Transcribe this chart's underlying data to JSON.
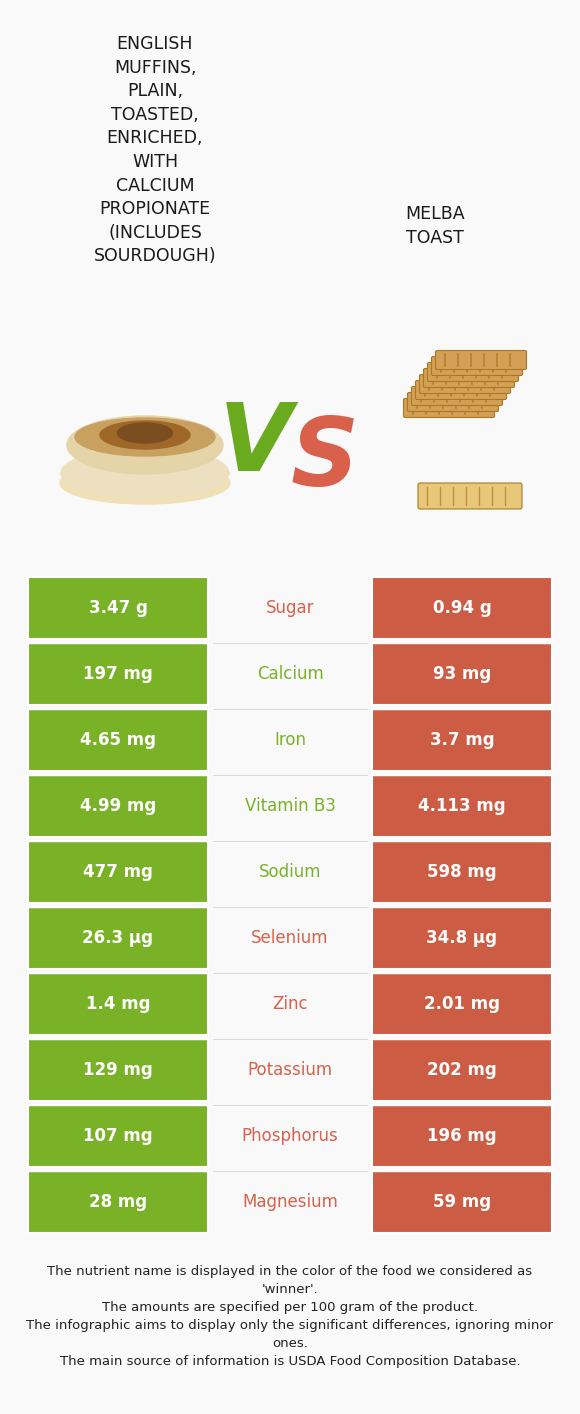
{
  "title_left": "ENGLISH\nMUFFINS,\nPLAIN,\nTOASTED,\nENRICHED,\nWITH\nCALCIUM\nPROPIONATE\n(INCLUDES\nSOURDOUGH)",
  "title_right": "MELBA\nTOAST",
  "vs_color_left": "#6aaa1e",
  "vs_color_right": "#d9614c",
  "left_color": "#7ab227",
  "right_color": "#cd5c45",
  "background_color": "#f9f9f9",
  "rows": [
    {
      "nutrient": "Sugar",
      "left_val": "3.47 g",
      "right_val": "0.94 g",
      "nutrient_color": "#d9614c"
    },
    {
      "nutrient": "Calcium",
      "left_val": "197 mg",
      "right_val": "93 mg",
      "nutrient_color": "#7ab227"
    },
    {
      "nutrient": "Iron",
      "left_val": "4.65 mg",
      "right_val": "3.7 mg",
      "nutrient_color": "#7ab227"
    },
    {
      "nutrient": "Vitamin B3",
      "left_val": "4.99 mg",
      "right_val": "4.113 mg",
      "nutrient_color": "#7ab227"
    },
    {
      "nutrient": "Sodium",
      "left_val": "477 mg",
      "right_val": "598 mg",
      "nutrient_color": "#7ab227"
    },
    {
      "nutrient": "Selenium",
      "left_val": "26.3 μg",
      "right_val": "34.8 μg",
      "nutrient_color": "#d9614c"
    },
    {
      "nutrient": "Zinc",
      "left_val": "1.4 mg",
      "right_val": "2.01 mg",
      "nutrient_color": "#d9614c"
    },
    {
      "nutrient": "Potassium",
      "left_val": "129 mg",
      "right_val": "202 mg",
      "nutrient_color": "#d9614c"
    },
    {
      "nutrient": "Phosphorus",
      "left_val": "107 mg",
      "right_val": "196 mg",
      "nutrient_color": "#d9614c"
    },
    {
      "nutrient": "Magnesium",
      "left_val": "28 mg",
      "right_val": "59 mg",
      "nutrient_color": "#d9614c"
    }
  ],
  "footer_text": "The nutrient name is displayed in the color of the food we considered as\n'winner'.\nThe amounts are specified per 100 gram of the product.\nThe infographic aims to display only the significant differences, ignoring minor\nones.\nThe main source of information is USDA Food Composition Database.",
  "title_fontsize": 12.5,
  "row_fontsize": 11,
  "footer_fontsize": 9.5
}
